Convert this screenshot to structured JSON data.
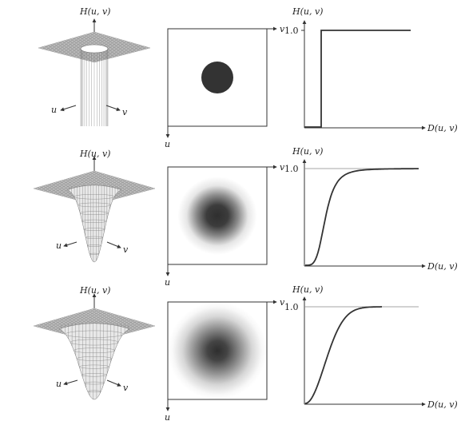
{
  "labels": {
    "h_axis": "H(u, v)",
    "d_axis": "D(u, v)",
    "u": "u",
    "v": "v",
    "one": "1.0"
  },
  "rows": [
    {
      "filter": "ideal",
      "gaussian_sigma_frac": 0
    },
    {
      "filter": "butterworth",
      "gaussian_sigma_frac": 0.18
    },
    {
      "filter": "gaussian",
      "gaussian_sigma_frac": 0.28
    }
  ],
  "colors": {
    "ink": "#333333",
    "mesh": "#777777",
    "plane": "#d9d9d9",
    "dark": "#333333"
  }
}
